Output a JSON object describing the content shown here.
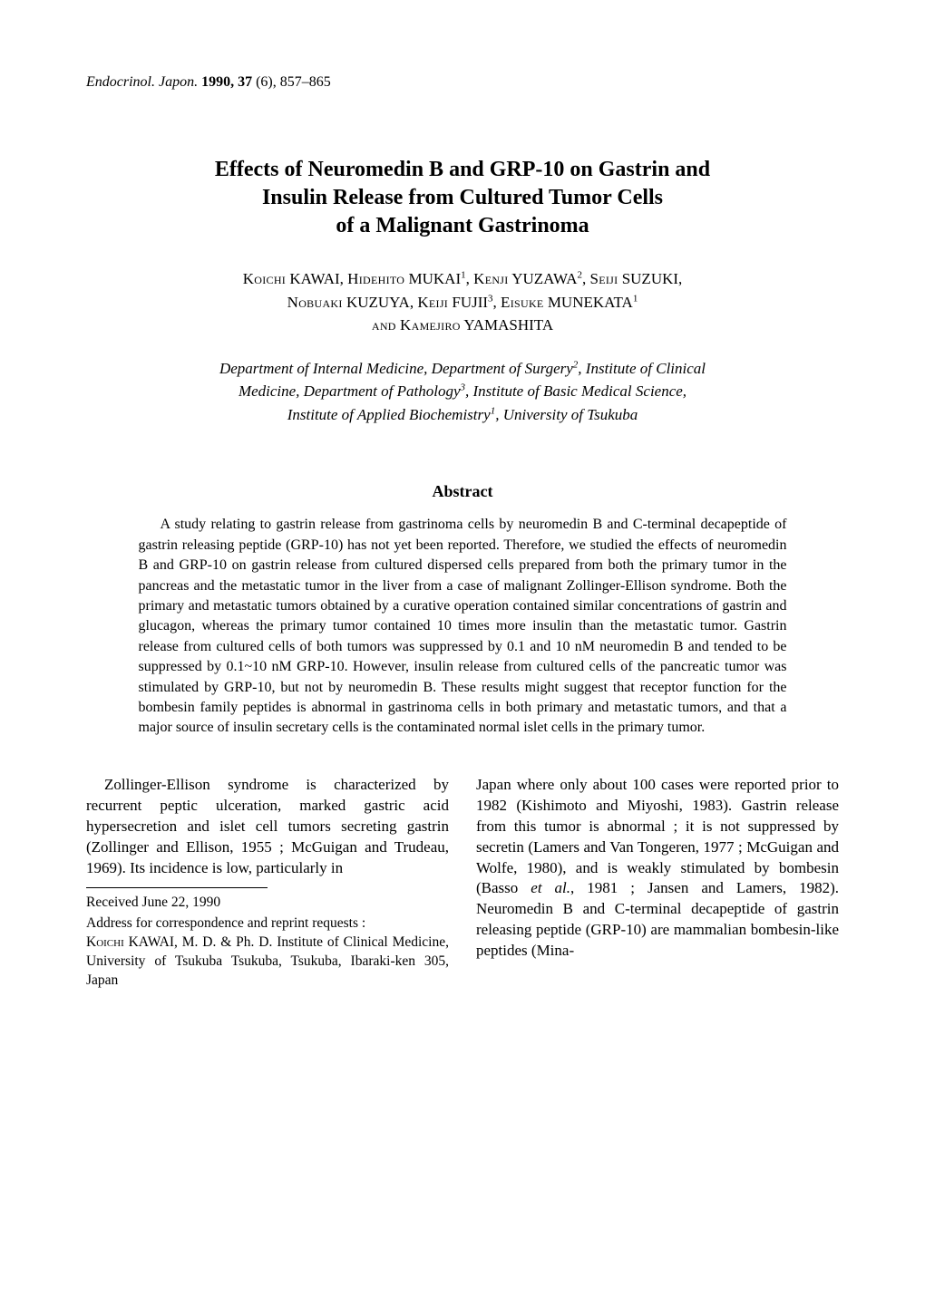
{
  "journal": {
    "name_italic": "Endocrinol. Japon.",
    "year_bold": "1990, 37",
    "rest": " (6), 857–865"
  },
  "title": {
    "line1": "Effects of Neuromedin B and GRP-10 on Gastrin and",
    "line2": "Insulin Release from Cultured Tumor Cells",
    "line3": "of a Malignant Gastrinoma"
  },
  "authors": {
    "a1_first": "Koichi",
    "a1_last": "KAWAI",
    "a2_first": "Hidehito",
    "a2_last": "MUKAI",
    "a2_sup": "1",
    "a3_first": "Kenji",
    "a3_last": "YUZAWA",
    "a3_sup": "2",
    "a4_first": "Seiji",
    "a4_last": "SUZUKI,",
    "a5_first": "Nobuaki",
    "a5_last": "KUZUYA,",
    "a6_first": "Keiji",
    "a6_last": "FUJII",
    "a6_sup": "3",
    "a7_first": "Eisuke",
    "a7_last": "MUNEKATA",
    "a7_sup": "1",
    "and": "and",
    "a8_first": "Kamejiro",
    "a8_last": "YAMASHITA"
  },
  "affiliations": {
    "line1a": "Department of Internal Medicine, Department of Surgery",
    "line1_sup": "2",
    "line1b": ", Institute of Clinical",
    "line2a": "Medicine, Department of Pathology",
    "line2_sup": "3",
    "line2b": ", Institute of Basic Medical Science,",
    "line3a": "Institute of Applied Biochemistry",
    "line3_sup": "1",
    "line3b": ", University of Tsukuba"
  },
  "abstract": {
    "heading": "Abstract",
    "text": "A study relating to gastrin release from gastrinoma cells by neuromedin B and C-terminal decapeptide of gastrin releasing peptide (GRP-10) has not yet been reported. Therefore, we studied the effects of neuromedin B and GRP-10 on gastrin release from cultured dispersed cells prepared from both the primary tumor in the pancreas and the metastatic tumor in the liver from a case of malignant Zollinger-Ellison syndrome. Both the primary and metastatic tumors obtained by a curative operation contained similar concentrations of gastrin and glucagon, whereas the primary tumor contained 10 times more insulin than the metastatic tumor. Gastrin release from cultured cells of both tumors was suppressed by 0.1 and 10 nM neuromedin B and tended to be suppressed by 0.1~10 nM GRP-10. However, insulin release from cultured cells of the pancreatic tumor was stimulated by GRP-10, but not by neuromedin B. These results might suggest that receptor function for the bombesin family peptides is abnormal in gastrinoma cells in both primary and metastatic tumors, and that a major source of insulin secretary cells is the contaminated normal islet cells in the primary tumor."
  },
  "body": {
    "left_para": "Zollinger-Ellison syndrome is characterized by recurrent peptic ulceration, marked gastric acid hypersecretion and islet cell tumors secreting gastrin (Zollinger and Ellison, 1955 ; McGuigan and Trudeau, 1969). Its incidence is low, particularly in",
    "right_para_a": "Japan where only about 100 cases were reported prior to 1982 (Kishimoto and Miyoshi, 1983). Gastrin release from this tumor is abnormal ; it is not suppressed by secretin (Lamers and Van Tongeren, 1977 ; McGuigan and Wolfe, 1980), and is weakly stimulated by bombesin (Basso ",
    "right_para_b_italic": "et al.",
    "right_para_c": ", 1981 ; Jansen and Lamers, 1982). Neuromedin B and C-terminal decapeptide of gastrin releasing peptide (GRP-10) are mammalian bombesin-like peptides (Mina-"
  },
  "footnotes": {
    "received": "Received June 22, 1990",
    "address_line1": "Address for correspondence and reprint requests :",
    "address_line2_a": "Koichi",
    "address_line2_b": " KAWAI, M. D. & Ph. D. Institute of Clinical Medicine, University of Tsukuba Tsukuba, Tsukuba, Ibaraki-ken 305, Japan"
  }
}
